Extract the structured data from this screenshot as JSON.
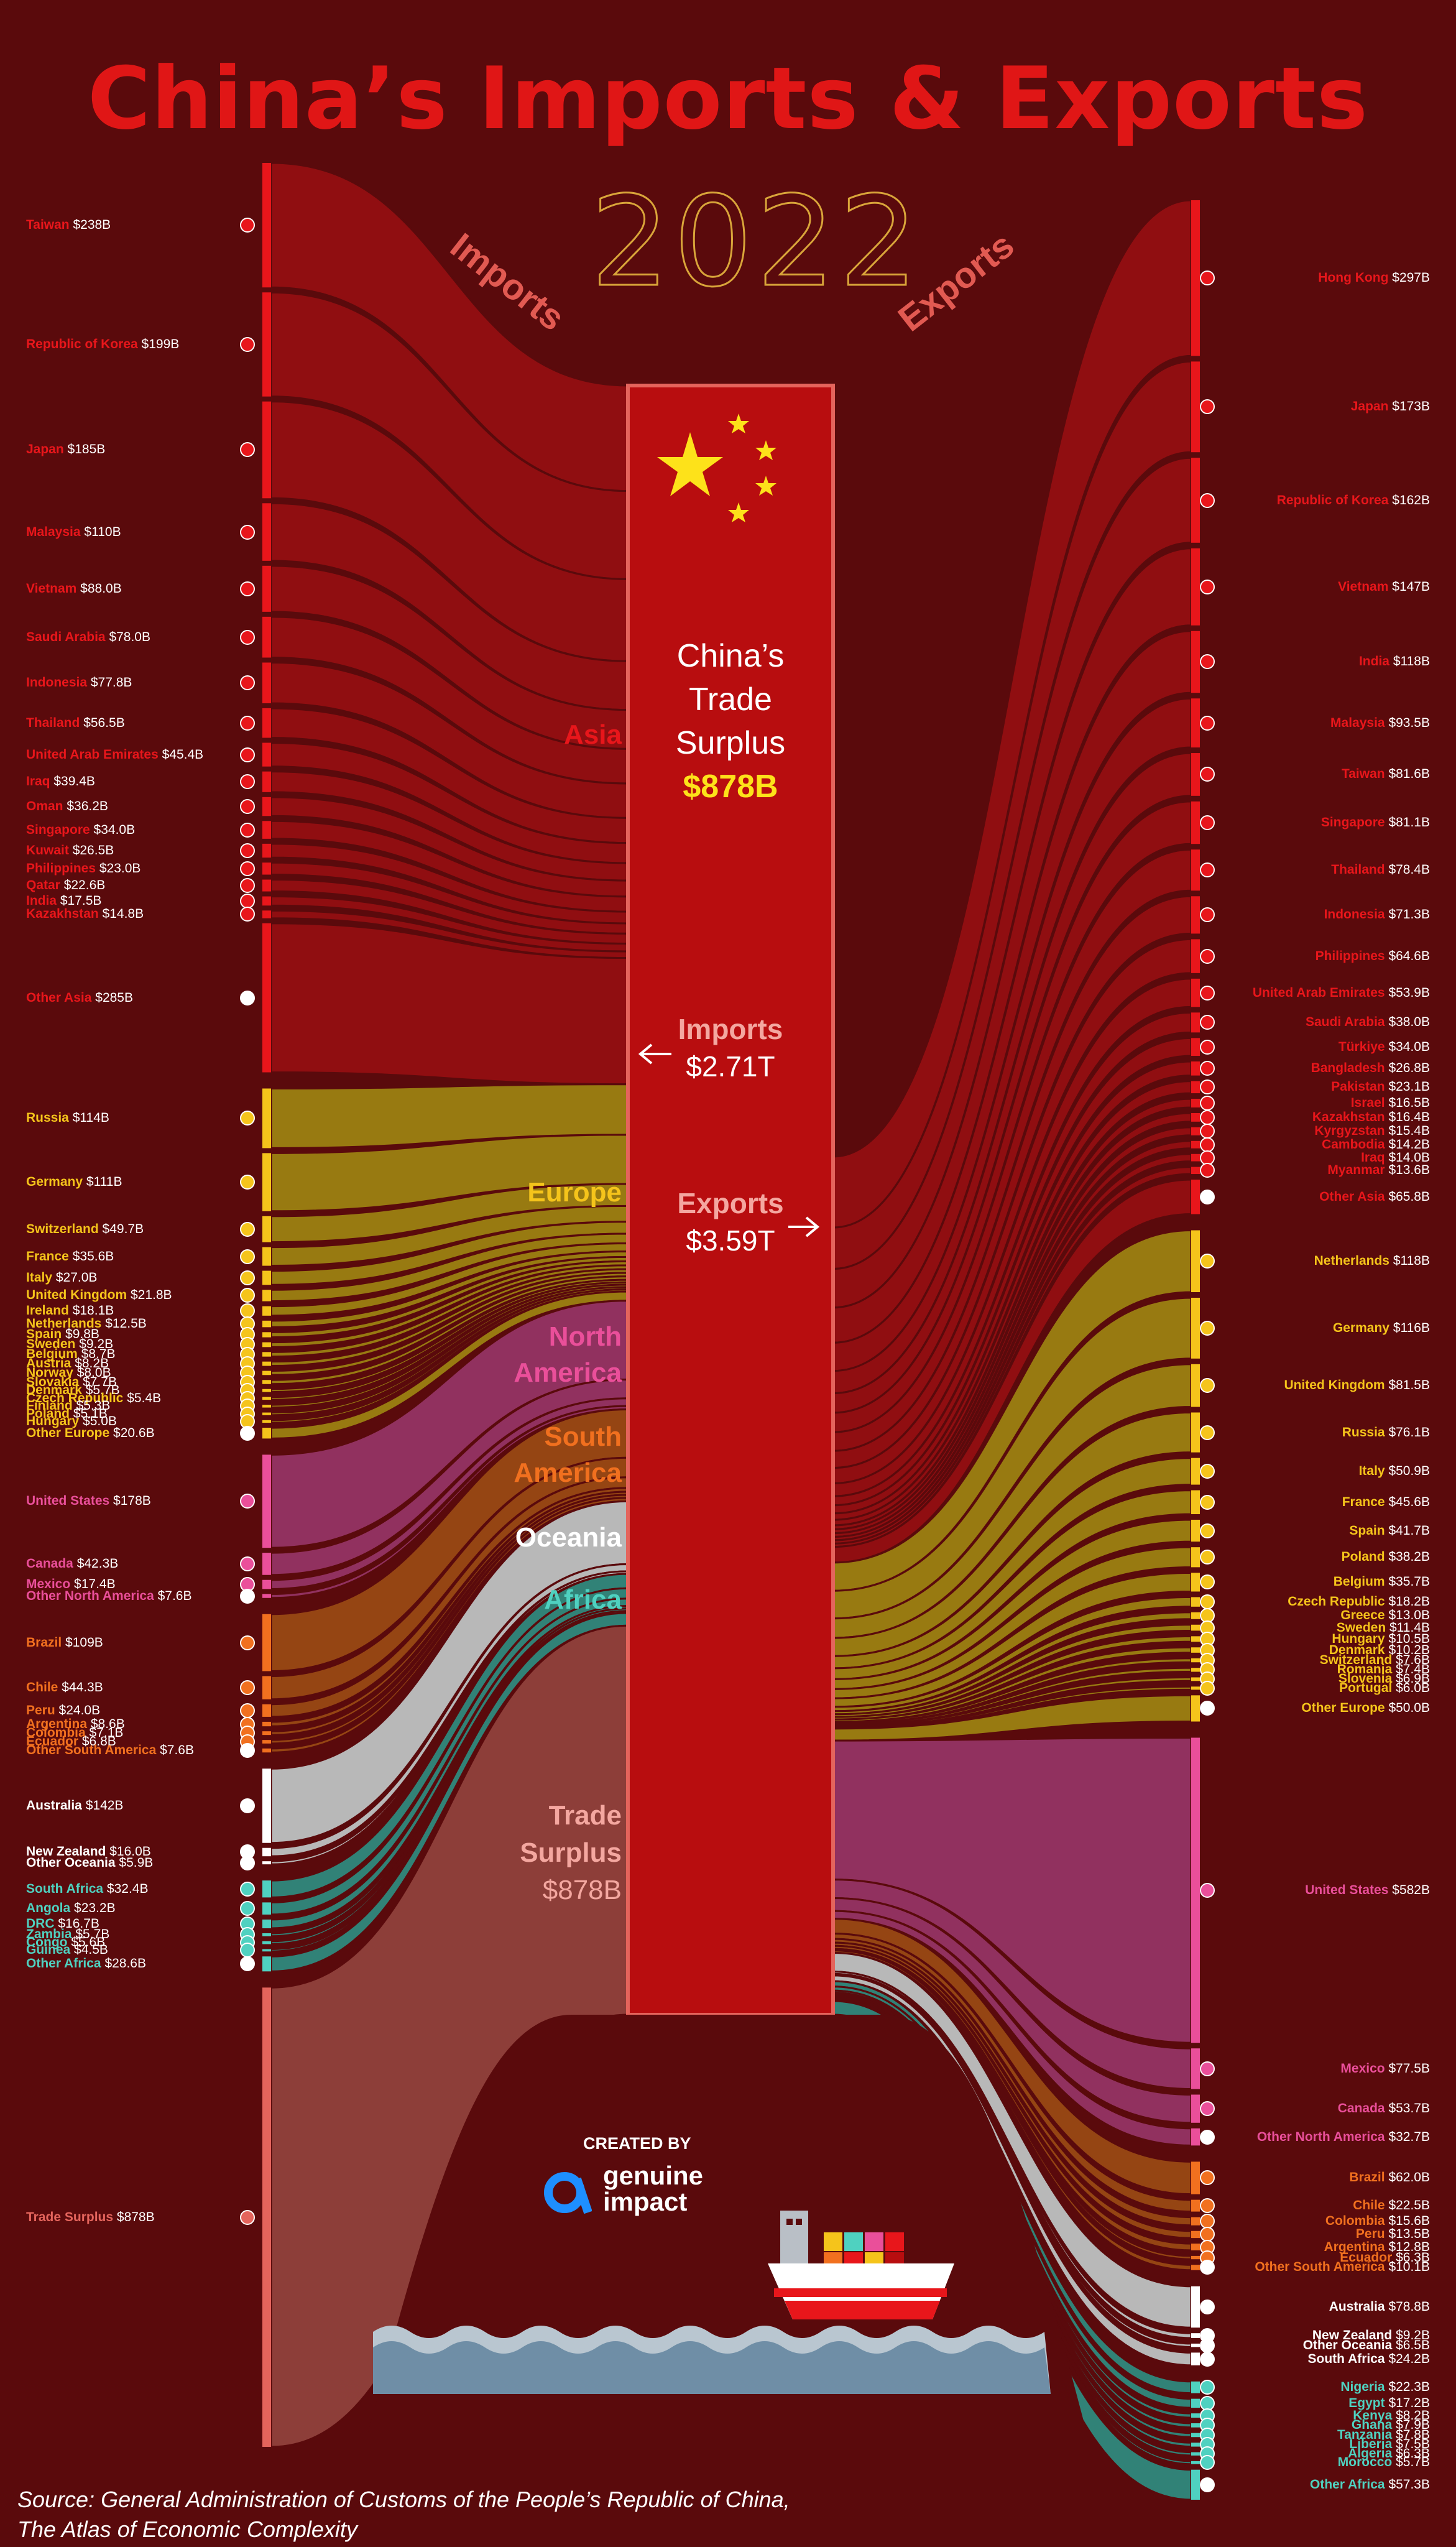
{
  "title": "China’s Imports & Exports",
  "year": "2022",
  "imports_heading": "Imports",
  "exports_heading": "Exports",
  "center": {
    "surplus_lines": [
      "China’s",
      "Trade",
      "Surplus"
    ],
    "surplus_value": "$878B",
    "imports_label": "Imports",
    "imports_value": "$2.71T",
    "exports_label": "Exports",
    "exports_value": "$3.59T",
    "trade_surplus_lines": [
      "Trade",
      "Surplus"
    ],
    "trade_surplus_value": "$878B"
  },
  "colors": {
    "Asia": "#e8161b",
    "Europe": "#f5c41b",
    "North America": "#ea4f9a",
    "South America": "#f1701f",
    "Oceania": "#ffffff",
    "Africa": "#4fd1c0",
    "Trade Surplus": "#e4645c"
  },
  "region_labels": [
    {
      "name": "Asia",
      "lines": [
        "Asia"
      ]
    },
    {
      "name": "Europe",
      "lines": [
        "Europe"
      ]
    },
    {
      "name": "North America",
      "lines": [
        "North",
        "America"
      ]
    },
    {
      "name": "South America",
      "lines": [
        "South",
        "America"
      ]
    },
    {
      "name": "Oceania",
      "lines": [
        "Oceania"
      ]
    },
    {
      "name": "Africa",
      "lines": [
        "Africa"
      ]
    }
  ],
  "chart_data": {
    "type": "sankey",
    "title": "China’s Imports & Exports",
    "units": "US$ billions",
    "imports": [
      {
        "label": "Taiwan",
        "value": 238,
        "text": "$238B",
        "region": "Asia"
      },
      {
        "label": "Republic of Korea",
        "value": 199,
        "text": "$199B",
        "region": "Asia"
      },
      {
        "label": "Japan",
        "value": 185,
        "text": "$185B",
        "region": "Asia"
      },
      {
        "label": "Malaysia",
        "value": 110,
        "text": "$110B",
        "region": "Asia"
      },
      {
        "label": "Vietnam",
        "value": 88.0,
        "text": "$88.0B",
        "region": "Asia"
      },
      {
        "label": "Saudi Arabia",
        "value": 78.0,
        "text": "$78.0B",
        "region": "Asia"
      },
      {
        "label": "Indonesia",
        "value": 77.8,
        "text": "$77.8B",
        "region": "Asia"
      },
      {
        "label": "Thailand",
        "value": 56.5,
        "text": "$56.5B",
        "region": "Asia"
      },
      {
        "label": "United Arab Emirates",
        "value": 45.4,
        "text": "$45.4B",
        "region": "Asia"
      },
      {
        "label": "Iraq",
        "value": 39.4,
        "text": "$39.4B",
        "region": "Asia"
      },
      {
        "label": "Oman",
        "value": 36.2,
        "text": "$36.2B",
        "region": "Asia"
      },
      {
        "label": "Singapore",
        "value": 34.0,
        "text": "$34.0B",
        "region": "Asia"
      },
      {
        "label": "Kuwait",
        "value": 26.5,
        "text": "$26.5B",
        "region": "Asia"
      },
      {
        "label": "Philippines",
        "value": 23.0,
        "text": "$23.0B",
        "region": "Asia"
      },
      {
        "label": "Qatar",
        "value": 22.6,
        "text": "$22.6B",
        "region": "Asia"
      },
      {
        "label": "India",
        "value": 17.5,
        "text": "$17.5B",
        "region": "Asia"
      },
      {
        "label": "Kazakhstan",
        "value": 14.8,
        "text": "$14.8B",
        "region": "Asia"
      },
      {
        "label": "Other Asia",
        "value": 285,
        "text": "$285B",
        "region": "Asia"
      },
      {
        "label": "Russia",
        "value": 114,
        "text": "$114B",
        "region": "Europe"
      },
      {
        "label": "Germany",
        "value": 111,
        "text": "$111B",
        "region": "Europe"
      },
      {
        "label": "Switzerland",
        "value": 49.7,
        "text": "$49.7B",
        "region": "Europe"
      },
      {
        "label": "France",
        "value": 35.6,
        "text": "$35.6B",
        "region": "Europe"
      },
      {
        "label": "Italy",
        "value": 27.0,
        "text": "$27.0B",
        "region": "Europe"
      },
      {
        "label": "United Kingdom",
        "value": 21.8,
        "text": "$21.8B",
        "region": "Europe"
      },
      {
        "label": "Ireland",
        "value": 18.1,
        "text": "$18.1B",
        "region": "Europe"
      },
      {
        "label": "Netherlands",
        "value": 12.5,
        "text": "$12.5B",
        "region": "Europe"
      },
      {
        "label": "Spain",
        "value": 9.8,
        "text": "$9.8B",
        "region": "Europe"
      },
      {
        "label": "Sweden",
        "value": 9.2,
        "text": "$9.2B",
        "region": "Europe"
      },
      {
        "label": "Belgium",
        "value": 8.7,
        "text": "$8.7B",
        "region": "Europe"
      },
      {
        "label": "Austria",
        "value": 8.2,
        "text": "$8.2B",
        "region": "Europe"
      },
      {
        "label": "Norway",
        "value": 8.0,
        "text": "$8.0B",
        "region": "Europe"
      },
      {
        "label": "Slovakia",
        "value": 7.7,
        "text": "$7.7B",
        "region": "Europe"
      },
      {
        "label": "Denmark",
        "value": 5.7,
        "text": "$5.7B",
        "region": "Europe"
      },
      {
        "label": "Czech Republic",
        "value": 5.4,
        "text": "$5.4B",
        "region": "Europe"
      },
      {
        "label": "Finland",
        "value": 5.3,
        "text": "$5.3B",
        "region": "Europe"
      },
      {
        "label": "Poland",
        "value": 5.1,
        "text": "$5.1B",
        "region": "Europe"
      },
      {
        "label": "Hungary",
        "value": 5.0,
        "text": "$5.0B",
        "region": "Europe"
      },
      {
        "label": "Other Europe",
        "value": 20.6,
        "text": "$20.6B",
        "region": "Europe"
      },
      {
        "label": "United States",
        "value": 178,
        "text": "$178B",
        "region": "North America"
      },
      {
        "label": "Canada",
        "value": 42.3,
        "text": "$42.3B",
        "region": "North America"
      },
      {
        "label": "Mexico",
        "value": 17.4,
        "text": "$17.4B",
        "region": "North America"
      },
      {
        "label": "Other North America",
        "value": 7.6,
        "text": "$7.6B",
        "region": "North America"
      },
      {
        "label": "Brazil",
        "value": 109,
        "text": "$109B",
        "region": "South America"
      },
      {
        "label": "Chile",
        "value": 44.3,
        "text": "$44.3B",
        "region": "South America"
      },
      {
        "label": "Peru",
        "value": 24.0,
        "text": "$24.0B",
        "region": "South America"
      },
      {
        "label": "Argentina",
        "value": 8.6,
        "text": "$8.6B",
        "region": "South America"
      },
      {
        "label": "Colombia",
        "value": 7.1,
        "text": "$7.1B",
        "region": "South America"
      },
      {
        "label": "Ecuador",
        "value": 6.8,
        "text": "$6.8B",
        "region": "South America"
      },
      {
        "label": "Other South America",
        "value": 7.6,
        "text": "$7.6B",
        "region": "South America"
      },
      {
        "label": "Australia",
        "value": 142,
        "text": "$142B",
        "region": "Oceania"
      },
      {
        "label": "New Zealand",
        "value": 16.0,
        "text": "$16.0B",
        "region": "Oceania"
      },
      {
        "label": "Other Oceania",
        "value": 5.9,
        "text": "$5.9B",
        "region": "Oceania"
      },
      {
        "label": "South Africa",
        "value": 32.4,
        "text": "$32.4B",
        "region": "Africa"
      },
      {
        "label": "Angola",
        "value": 23.2,
        "text": "$23.2B",
        "region": "Africa"
      },
      {
        "label": "DRC",
        "value": 16.7,
        "text": "$16.7B",
        "region": "Africa"
      },
      {
        "label": "Zambia",
        "value": 5.7,
        "text": "$5.7B",
        "region": "Africa"
      },
      {
        "label": "Congo",
        "value": 5.6,
        "text": "$5.6B",
        "region": "Africa"
      },
      {
        "label": "Guinea",
        "value": 4.5,
        "text": "$4.5B",
        "region": "Africa"
      },
      {
        "label": "Other Africa",
        "value": 28.6,
        "text": "$28.6B",
        "region": "Africa"
      },
      {
        "label": "Trade Surplus",
        "value": 878,
        "text": "$878B",
        "region": "Trade Surplus"
      }
    ],
    "exports": [
      {
        "label": "Hong Kong",
        "value": 297,
        "text": "$297B",
        "region": "Asia"
      },
      {
        "label": "Japan",
        "value": 173,
        "text": "$173B",
        "region": "Asia"
      },
      {
        "label": "Republic of Korea",
        "value": 162,
        "text": "$162B",
        "region": "Asia"
      },
      {
        "label": "Vietnam",
        "value": 147,
        "text": "$147B",
        "region": "Asia"
      },
      {
        "label": "India",
        "value": 118,
        "text": "$118B",
        "region": "Asia"
      },
      {
        "label": "Malaysia",
        "value": 93.5,
        "text": "$93.5B",
        "region": "Asia"
      },
      {
        "label": "Taiwan",
        "value": 81.6,
        "text": "$81.6B",
        "region": "Asia"
      },
      {
        "label": "Singapore",
        "value": 81.1,
        "text": "$81.1B",
        "region": "Asia"
      },
      {
        "label": "Thailand",
        "value": 78.4,
        "text": "$78.4B",
        "region": "Asia"
      },
      {
        "label": "Indonesia",
        "value": 71.3,
        "text": "$71.3B",
        "region": "Asia"
      },
      {
        "label": "Philippines",
        "value": 64.6,
        "text": "$64.6B",
        "region": "Asia"
      },
      {
        "label": "United Arab Emirates",
        "value": 53.9,
        "text": "$53.9B",
        "region": "Asia"
      },
      {
        "label": "Saudi Arabia",
        "value": 38.0,
        "text": "$38.0B",
        "region": "Asia"
      },
      {
        "label": "Türkiye",
        "value": 34.0,
        "text": "$34.0B",
        "region": "Asia"
      },
      {
        "label": "Bangladesh",
        "value": 26.8,
        "text": "$26.8B",
        "region": "Asia"
      },
      {
        "label": "Pakistan",
        "value": 23.1,
        "text": "$23.1B",
        "region": "Asia"
      },
      {
        "label": "Israel",
        "value": 16.5,
        "text": "$16.5B",
        "region": "Asia"
      },
      {
        "label": "Kazakhstan",
        "value": 16.4,
        "text": "$16.4B",
        "region": "Asia"
      },
      {
        "label": "Kyrgyzstan",
        "value": 15.4,
        "text": "$15.4B",
        "region": "Asia"
      },
      {
        "label": "Cambodia",
        "value": 14.2,
        "text": "$14.2B",
        "region": "Asia"
      },
      {
        "label": "Iraq",
        "value": 14.0,
        "text": "$14.0B",
        "region": "Asia"
      },
      {
        "label": "Myanmar",
        "value": 13.6,
        "text": "$13.6B",
        "region": "Asia"
      },
      {
        "label": "Other Asia",
        "value": 65.8,
        "text": "$65.8B",
        "region": "Asia"
      },
      {
        "label": "Netherlands",
        "value": 118,
        "text": "$118B",
        "region": "Europe"
      },
      {
        "label": "Germany",
        "value": 116,
        "text": "$116B",
        "region": "Europe"
      },
      {
        "label": "United Kingdom",
        "value": 81.5,
        "text": "$81.5B",
        "region": "Europe"
      },
      {
        "label": "Russia",
        "value": 76.1,
        "text": "$76.1B",
        "region": "Europe"
      },
      {
        "label": "Italy",
        "value": 50.9,
        "text": "$50.9B",
        "region": "Europe"
      },
      {
        "label": "France",
        "value": 45.6,
        "text": "$45.6B",
        "region": "Europe"
      },
      {
        "label": "Spain",
        "value": 41.7,
        "text": "$41.7B",
        "region": "Europe"
      },
      {
        "label": "Poland",
        "value": 38.2,
        "text": "$38.2B",
        "region": "Europe"
      },
      {
        "label": "Belgium",
        "value": 35.7,
        "text": "$35.7B",
        "region": "Europe"
      },
      {
        "label": "Czech Republic",
        "value": 18.2,
        "text": "$18.2B",
        "region": "Europe"
      },
      {
        "label": "Greece",
        "value": 13.0,
        "text": "$13.0B",
        "region": "Europe"
      },
      {
        "label": "Sweden",
        "value": 11.4,
        "text": "$11.4B",
        "region": "Europe"
      },
      {
        "label": "Hungary",
        "value": 10.5,
        "text": "$10.5B",
        "region": "Europe"
      },
      {
        "label": "Denmark",
        "value": 10.2,
        "text": "$10.2B",
        "region": "Europe"
      },
      {
        "label": "Switzerland",
        "value": 7.6,
        "text": "$7.6B",
        "region": "Europe"
      },
      {
        "label": "Romania",
        "value": 7.4,
        "text": "$7.4B",
        "region": "Europe"
      },
      {
        "label": "Slovenia",
        "value": 6.9,
        "text": "$6.9B",
        "region": "Europe"
      },
      {
        "label": "Portugal",
        "value": 6.0,
        "text": "$6.0B",
        "region": "Europe"
      },
      {
        "label": "Other Europe",
        "value": 50.0,
        "text": "$50.0B",
        "region": "Europe"
      },
      {
        "label": "United States",
        "value": 582,
        "text": "$582B",
        "region": "North America"
      },
      {
        "label": "Mexico",
        "value": 77.5,
        "text": "$77.5B",
        "region": "North America"
      },
      {
        "label": "Canada",
        "value": 53.7,
        "text": "$53.7B",
        "region": "North America"
      },
      {
        "label": "Other North America",
        "value": 32.7,
        "text": "$32.7B",
        "region": "North America"
      },
      {
        "label": "Brazil",
        "value": 62.0,
        "text": "$62.0B",
        "region": "South America"
      },
      {
        "label": "Chile",
        "value": 22.5,
        "text": "$22.5B",
        "region": "South America"
      },
      {
        "label": "Colombia",
        "value": 15.6,
        "text": "$15.6B",
        "region": "South America"
      },
      {
        "label": "Peru",
        "value": 13.5,
        "text": "$13.5B",
        "region": "South America"
      },
      {
        "label": "Argentina",
        "value": 12.8,
        "text": "$12.8B",
        "region": "South America"
      },
      {
        "label": "Ecuador",
        "value": 6.3,
        "text": "$6.3B",
        "region": "South America"
      },
      {
        "label": "Other South America",
        "value": 10.1,
        "text": "$10.1B",
        "region": "South America"
      },
      {
        "label": "Australia",
        "value": 78.8,
        "text": "$78.8B",
        "region": "Oceania"
      },
      {
        "label": "New Zealand",
        "value": 9.2,
        "text": "$9.2B",
        "region": "Oceania"
      },
      {
        "label": "Other Oceania",
        "value": 6.5,
        "text": "$6.5B",
        "region": "Oceania"
      },
      {
        "label": "South Africa",
        "value": 24.2,
        "text": "$24.2B",
        "region": "Oceania"
      },
      {
        "label": "Nigeria",
        "value": 22.3,
        "text": "$22.3B",
        "region": "Africa"
      },
      {
        "label": "Egypt",
        "value": 17.2,
        "text": "$17.2B",
        "region": "Africa"
      },
      {
        "label": "Kenya",
        "value": 8.2,
        "text": "$8.2B",
        "region": "Africa"
      },
      {
        "label": "Ghana",
        "value": 7.9,
        "text": "$7.9B",
        "region": "Africa"
      },
      {
        "label": "Tanzania",
        "value": 7.8,
        "text": "$7.8B",
        "region": "Africa"
      },
      {
        "label": "Liberia",
        "value": 7.5,
        "text": "$7.5B",
        "region": "Africa"
      },
      {
        "label": "Algeria",
        "value": 6.3,
        "text": "$6.3B",
        "region": "Africa"
      },
      {
        "label": "Morocco",
        "value": 5.7,
        "text": "$5.7B",
        "region": "Africa"
      },
      {
        "label": "Other Africa",
        "value": 57.3,
        "text": "$57.3B",
        "region": "Africa"
      }
    ]
  },
  "credit": {
    "created_by": "CREATED BY",
    "brand_line1": "genuine",
    "brand_line2": "impact"
  },
  "source_lines": [
    "Source: General Administration of Customs of the People’s Republic of China,",
    "The Atlas of Economic Complexity"
  ]
}
